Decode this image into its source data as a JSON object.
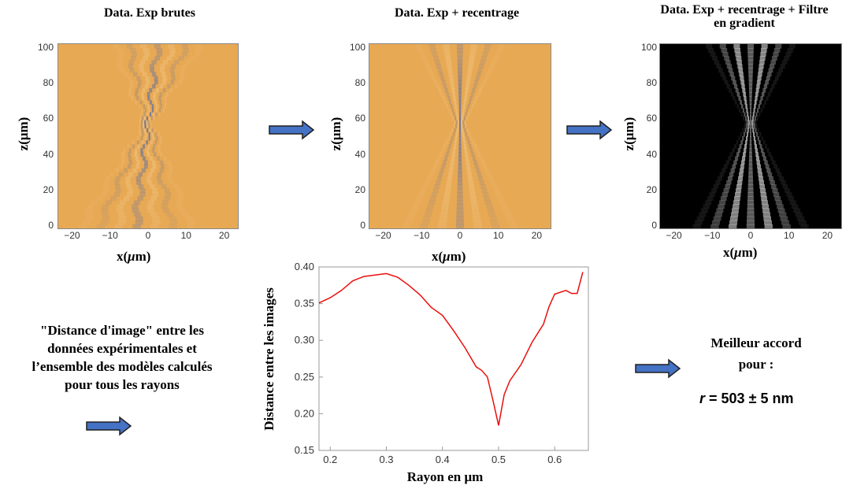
{
  "panels": [
    {
      "title": "Data. Exp brutes",
      "xlabel_prefix": "x(",
      "xlabel_mu": "μ",
      "xlabel_suffix": "m)",
      "ylabel": "z(μm)",
      "xticks": [
        "−20",
        "−10",
        "0",
        "10",
        "20"
      ],
      "yticks": [
        "100",
        "80",
        "60",
        "40",
        "20",
        "0"
      ]
    },
    {
      "title": "Data. Exp + recentrage",
      "xlabel_prefix": "x(",
      "xlabel_mu": "μ",
      "xlabel_suffix": "m)",
      "ylabel": "z(μm)",
      "xticks": [
        "−20",
        "−10",
        "0",
        "10",
        "20"
      ],
      "yticks": [
        "100",
        "80",
        "60",
        "40",
        "20",
        "0"
      ]
    },
    {
      "title_line1": "Data. Exp + recentrage + Filtre",
      "title_line2": "en gradient",
      "xlabel_prefix": "x(",
      "xlabel_mu": "μ",
      "xlabel_suffix": "m)",
      "ylabel": "z(μm)",
      "xticks": [
        "−20",
        "−10",
        "0",
        "10",
        "20"
      ],
      "yticks": [
        "100",
        "80",
        "60",
        "40",
        "20",
        "0"
      ]
    }
  ],
  "description": {
    "lines": [
      "\"Distance d'image\" entre les",
      "données expérimentales et",
      "l’ensemble des modèles calculés",
      "pour tous les rayons"
    ]
  },
  "result": {
    "line1": "Meilleur accord",
    "line2": "pour :",
    "formula_var": "r",
    "formula_rest": " = 503 ± 5 nm"
  },
  "colors": {
    "arrow_fill": "#4472c4",
    "arrow_stroke": "#1f1f1f",
    "curve": "#e8100c",
    "orange": "#e8a954",
    "blue": "#5b6fa6"
  },
  "chart_data": {
    "type": "line",
    "xlabel": "Rayon en μm",
    "ylabel": "Distance entre les images",
    "xlim": [
      0.18,
      0.66
    ],
    "ylim": [
      0.15,
      0.4
    ],
    "xticks": [
      0.2,
      0.3,
      0.4,
      0.5,
      0.6
    ],
    "yticks": [
      0.15,
      0.2,
      0.25,
      0.3,
      0.35,
      0.4
    ],
    "series": [
      {
        "x": [
          0.18,
          0.2,
          0.22,
          0.24,
          0.26,
          0.28,
          0.3,
          0.32,
          0.34,
          0.36,
          0.38,
          0.4,
          0.42,
          0.44,
          0.46,
          0.47,
          0.48,
          0.49,
          0.5,
          0.51,
          0.52,
          0.54,
          0.56,
          0.58,
          0.59,
          0.6,
          0.62,
          0.63,
          0.64,
          0.65
        ],
        "y": [
          0.351,
          0.358,
          0.368,
          0.381,
          0.387,
          0.389,
          0.391,
          0.386,
          0.375,
          0.362,
          0.345,
          0.334,
          0.313,
          0.29,
          0.264,
          0.259,
          0.25,
          0.218,
          0.184,
          0.226,
          0.245,
          0.267,
          0.298,
          0.322,
          0.346,
          0.363,
          0.368,
          0.364,
          0.364,
          0.393
        ]
      }
    ]
  }
}
